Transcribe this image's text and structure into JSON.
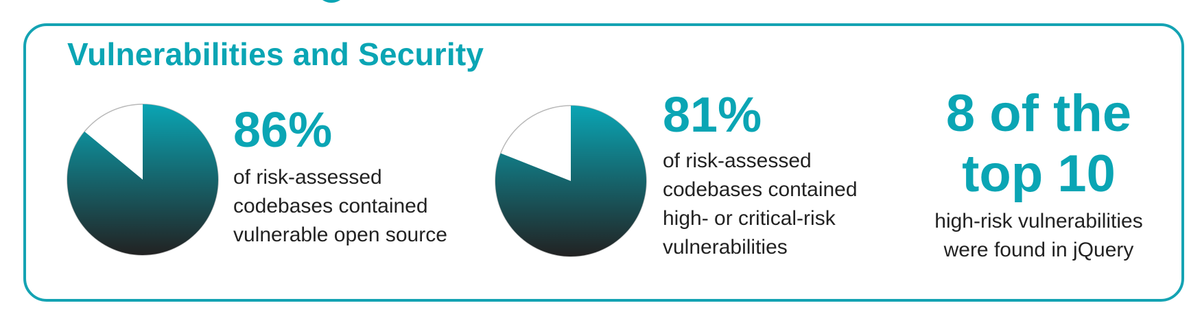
{
  "section_title": "Vulnerabilities and Security",
  "colors": {
    "accent": "#0aa5b4",
    "pie_top": "#0aa5b4",
    "pie_bottom": "#222222",
    "remainder": "#ffffff",
    "text": "#222222"
  },
  "chart_data": [
    {
      "type": "pie",
      "slices": [
        {
          "label": "vulnerable open source",
          "value": 86
        },
        {
          "label": "other",
          "value": 14
        }
      ],
      "headline": "86%",
      "description_lines": [
        "of risk-assessed",
        "codebases contained",
        "vulnerable open source"
      ]
    },
    {
      "type": "pie",
      "slices": [
        {
          "label": "high- or critical-risk vulnerabilities",
          "value": 81
        },
        {
          "label": "other",
          "value": 19
        }
      ],
      "headline": "81%",
      "description_lines": [
        "of risk-assessed",
        "codebases contained",
        "high- or critical-risk",
        "vulnerabilities"
      ]
    }
  ],
  "stat3": {
    "headline_lines": [
      "8 of the",
      "top 10"
    ],
    "description_lines": [
      "high-risk vulnerabilities",
      "were found in jQuery"
    ]
  }
}
